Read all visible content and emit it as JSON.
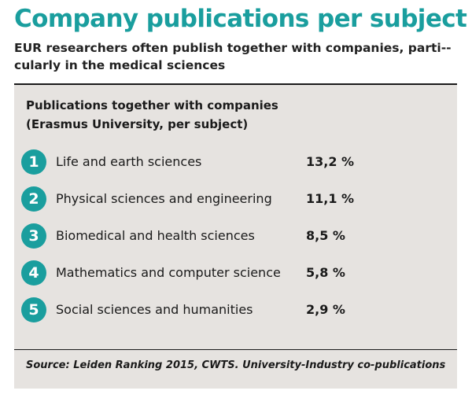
{
  "header": {
    "title": "Company publications per subject",
    "subtitle": "EUR researchers often publish together with companies, parti-­cularly in the medical sciences"
  },
  "colors": {
    "accent": "#1a9e9e",
    "panel": "#e6e3e0",
    "text": "#1a1a1a"
  },
  "chart_data": {
    "type": "table",
    "title_line1": "Publications together with companies",
    "title_line2": "(Erasmus University, per subject)",
    "unit": "%",
    "rows": [
      {
        "rank": "1",
        "category": "Life and earth sciences",
        "value": 13.2,
        "value_label": "13,2 %"
      },
      {
        "rank": "2",
        "category": "Physical sciences and engineering",
        "value": 11.1,
        "value_label": "11,1 %"
      },
      {
        "rank": "3",
        "category": "Biomedical and health sciences",
        "value": 8.5,
        "value_label": "8,5 %"
      },
      {
        "rank": "4",
        "category": "Mathematics and computer science",
        "value": 5.8,
        "value_label": "5,8 %"
      },
      {
        "rank": "5",
        "category": "Social sciences and humanities",
        "value": 2.9,
        "value_label": "2,9 %"
      }
    ],
    "source": "Source: Leiden Ranking 2015, CWTS. University-Industry co-publications"
  }
}
